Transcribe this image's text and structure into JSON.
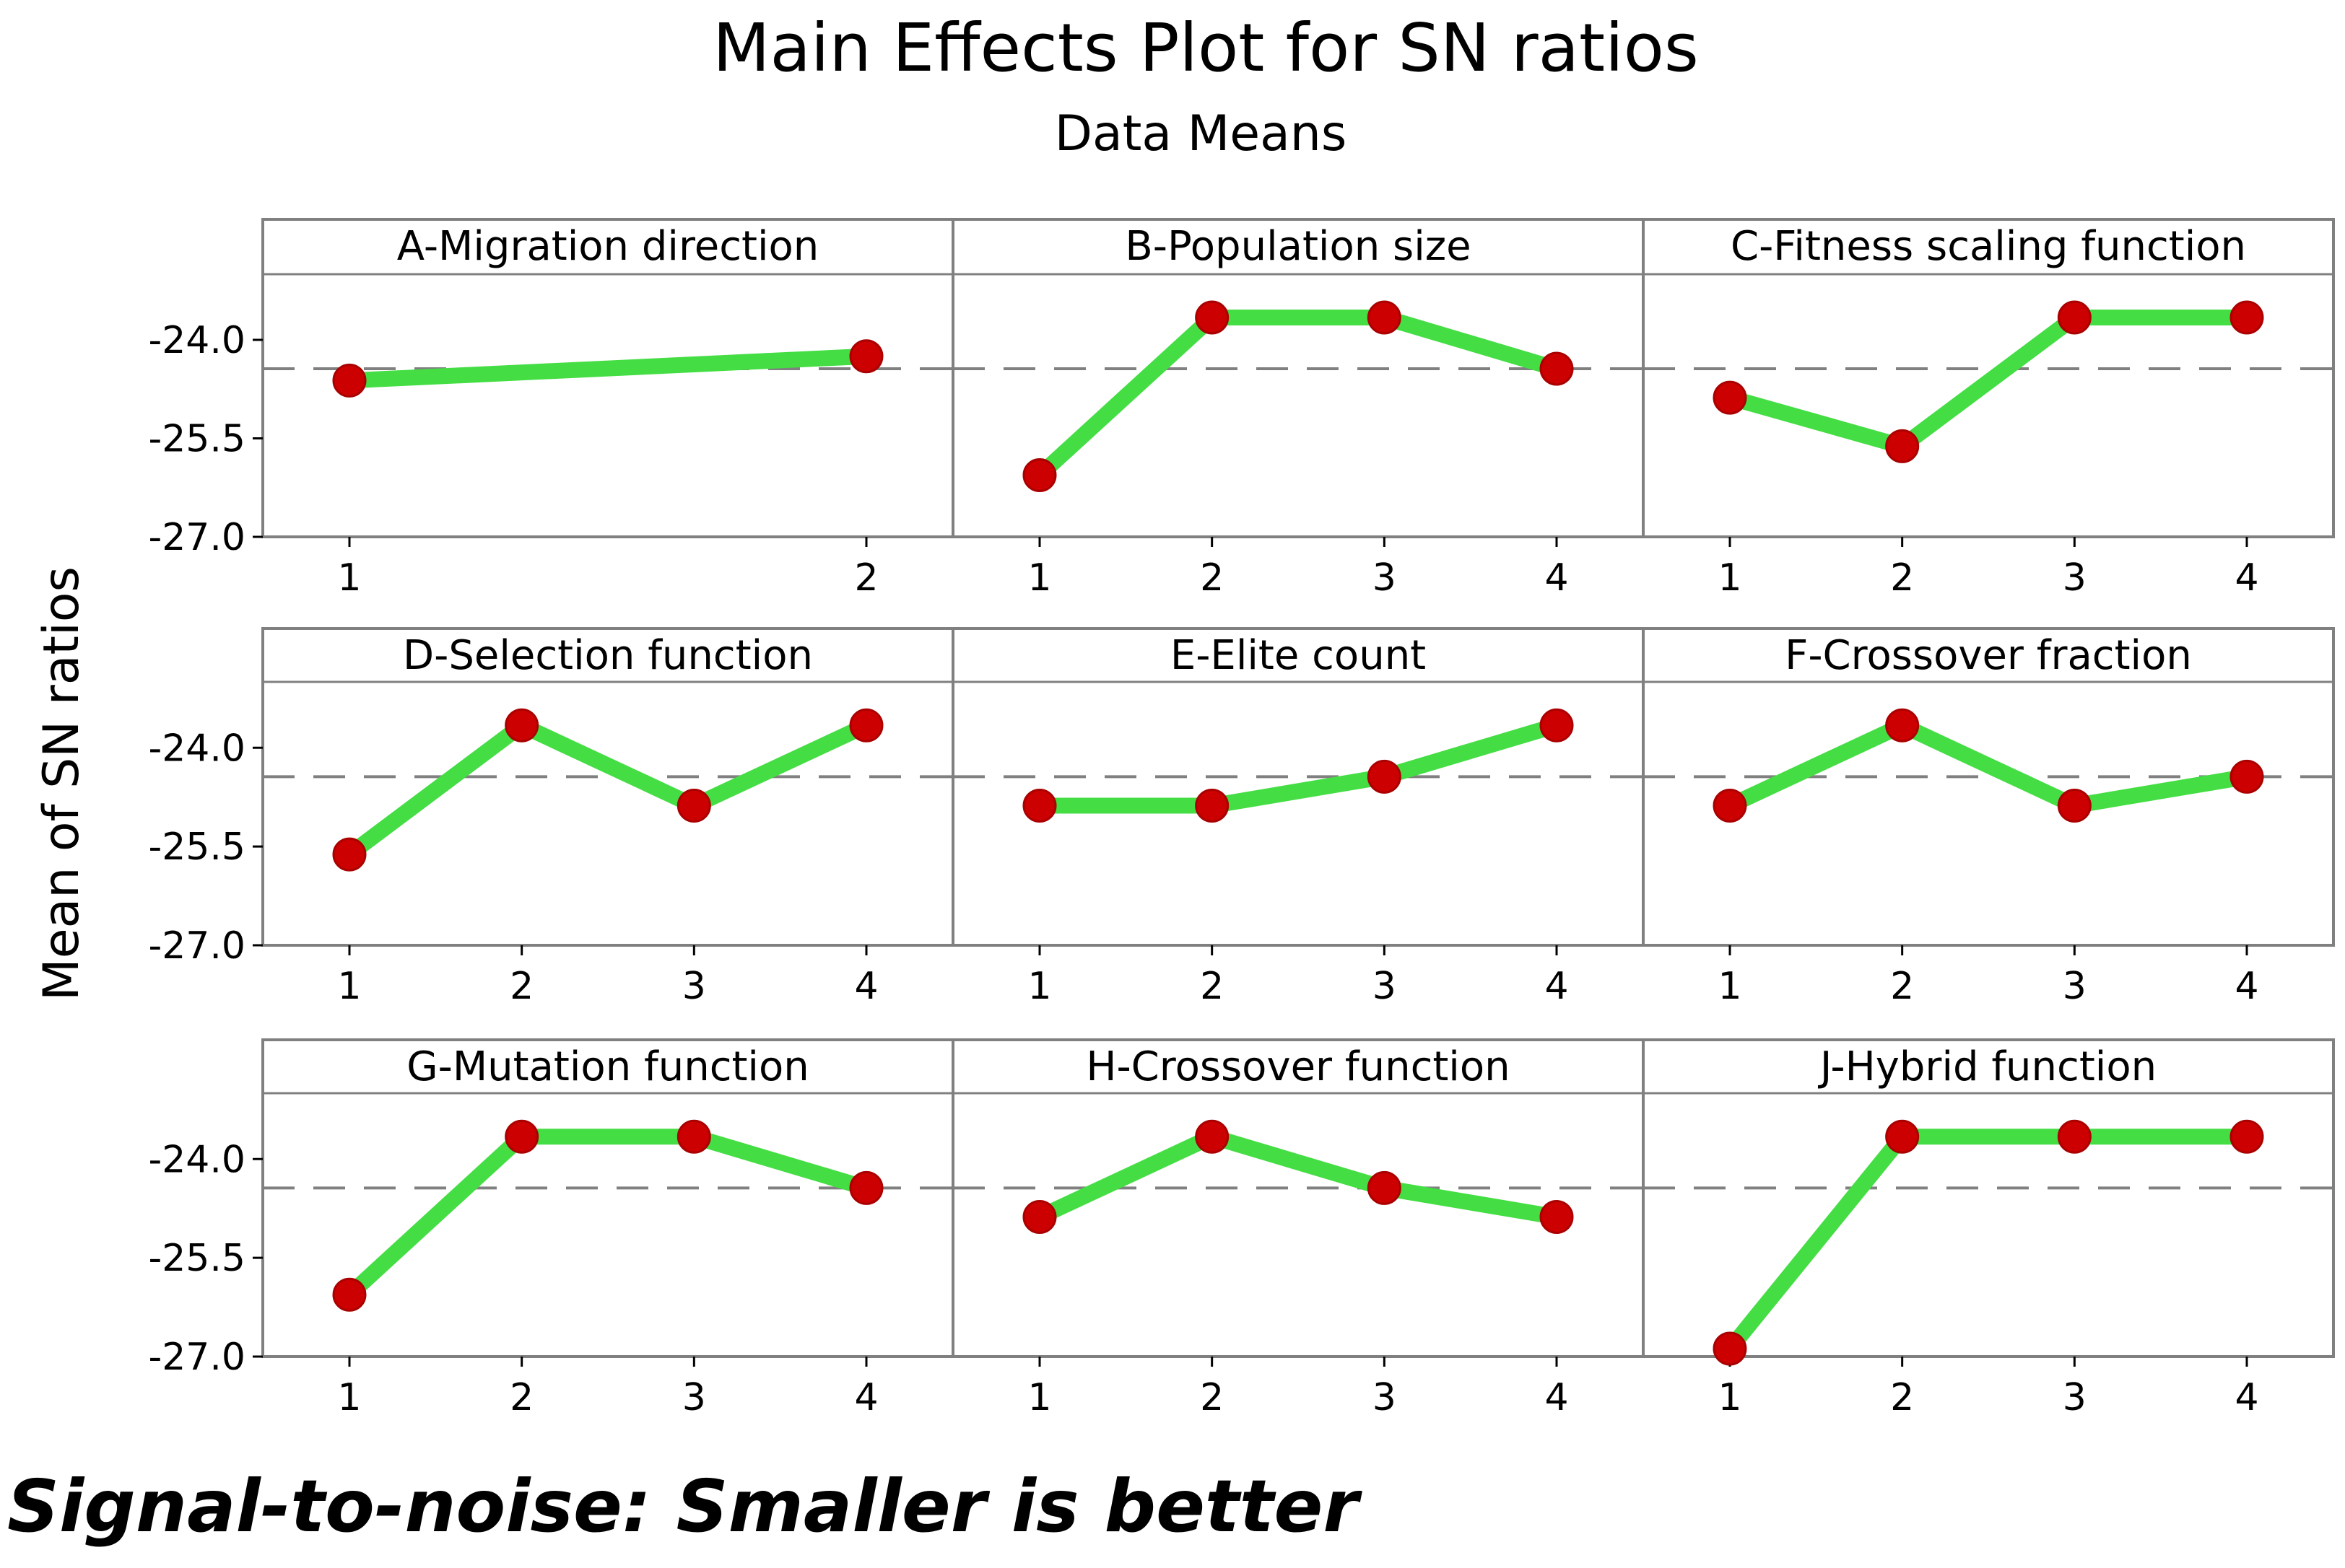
{
  "chart_data": {
    "type": "line",
    "title": "Main Effects Plot for SN ratios",
    "subtitle": "Data Means",
    "ylabel": "Mean of SN ratios",
    "ylim": [
      -27.0,
      -23.0
    ],
    "yticks": [
      "-24.0",
      "-25.5",
      "-27.0"
    ],
    "ytick_values": [
      -24.0,
      -25.5,
      -27.0
    ],
    "reference_mean": -24.44,
    "footnote": "Signal-to-noise: Smaller is better",
    "colors": {
      "line": "#44dd44",
      "marker": "#cc0000",
      "frame": "#808080",
      "reference": "#808080"
    },
    "panels": [
      {
        "name": "A-Migration direction",
        "levels": [
          "1",
          "2"
        ],
        "values": [
          -24.62,
          -24.25
        ]
      },
      {
        "name": "B-Population size",
        "levels": [
          "1",
          "2",
          "3",
          "4"
        ],
        "values": [
          -26.06,
          -23.66,
          -23.66,
          -24.44
        ]
      },
      {
        "name": "C-Fitness scaling function",
        "levels": [
          "1",
          "2",
          "3",
          "4"
        ],
        "values": [
          -24.88,
          -25.62,
          -23.66,
          -23.66
        ]
      },
      {
        "name": "D-Selection function",
        "levels": [
          "1",
          "2",
          "3",
          "4"
        ],
        "values": [
          -25.62,
          -23.66,
          -24.88,
          -23.66
        ]
      },
      {
        "name": "E-Elite count",
        "levels": [
          "1",
          "2",
          "3",
          "4"
        ],
        "values": [
          -24.88,
          -24.88,
          -24.44,
          -23.66
        ]
      },
      {
        "name": "F-Crossover fraction",
        "levels": [
          "1",
          "2",
          "3",
          "4"
        ],
        "values": [
          -24.88,
          -23.66,
          -24.88,
          -24.44
        ]
      },
      {
        "name": "G-Mutation function",
        "levels": [
          "1",
          "2",
          "3",
          "4"
        ],
        "values": [
          -26.06,
          -23.66,
          -23.66,
          -24.44
        ]
      },
      {
        "name": "H-Crossover function",
        "levels": [
          "1",
          "2",
          "3",
          "4"
        ],
        "values": [
          -24.88,
          -23.66,
          -24.44,
          -24.88
        ]
      },
      {
        "name": "J-Hybrid function",
        "levels": [
          "1",
          "2",
          "3",
          "4"
        ],
        "values": [
          -26.88,
          -23.66,
          -23.66,
          -23.66
        ]
      }
    ]
  }
}
